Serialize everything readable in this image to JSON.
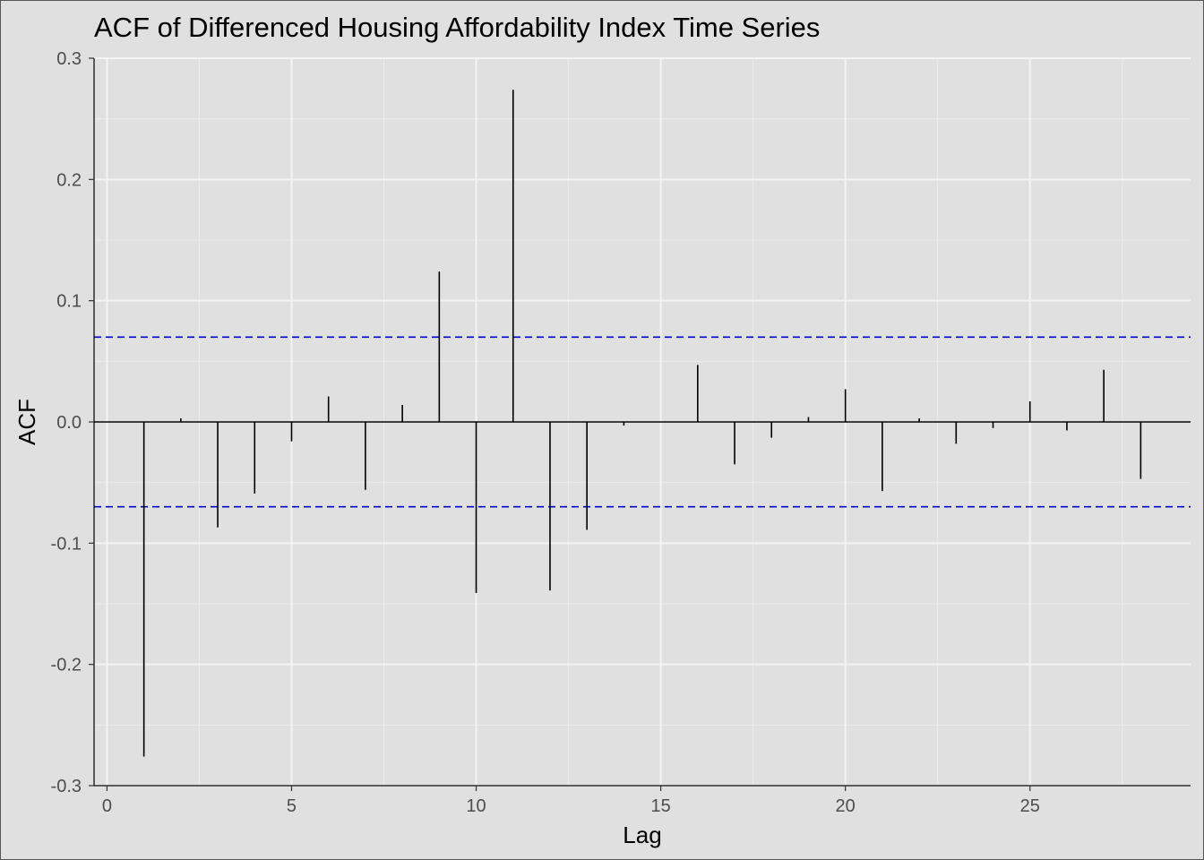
{
  "chart_data": {
    "type": "bar",
    "title": "ACF of Differenced Housing Affordability Index Time Series",
    "xlabel": "Lag",
    "ylabel": "ACF",
    "xlim": [
      -0.35,
      29.35
    ],
    "ylim": [
      -0.3,
      0.3
    ],
    "x_ticks": [
      0,
      5,
      10,
      15,
      20,
      25
    ],
    "y_ticks": [
      -0.3,
      -0.2,
      -0.1,
      0.0,
      0.1,
      0.2,
      0.3
    ],
    "y_tick_labels": [
      "-0.3",
      "-0.2",
      "-0.1",
      "0.0",
      "0.1",
      "0.2",
      "0.3"
    ],
    "grid": true,
    "confidence_bound": 0.07,
    "bound_color": "#0000cc",
    "lags": [
      1,
      2,
      3,
      4,
      5,
      6,
      7,
      8,
      9,
      10,
      11,
      12,
      13,
      14,
      15,
      16,
      17,
      18,
      19,
      20,
      21,
      22,
      23,
      24,
      25,
      26,
      27,
      28
    ],
    "values": [
      -0.276,
      0.003,
      -0.087,
      -0.059,
      -0.016,
      0.021,
      -0.056,
      0.014,
      0.124,
      -0.141,
      0.274,
      -0.139,
      -0.089,
      -0.003,
      0.0,
      0.047,
      -0.035,
      -0.013,
      0.004,
      0.027,
      -0.057,
      0.003,
      -0.018,
      -0.005,
      0.017,
      -0.007,
      0.043,
      -0.047
    ]
  }
}
